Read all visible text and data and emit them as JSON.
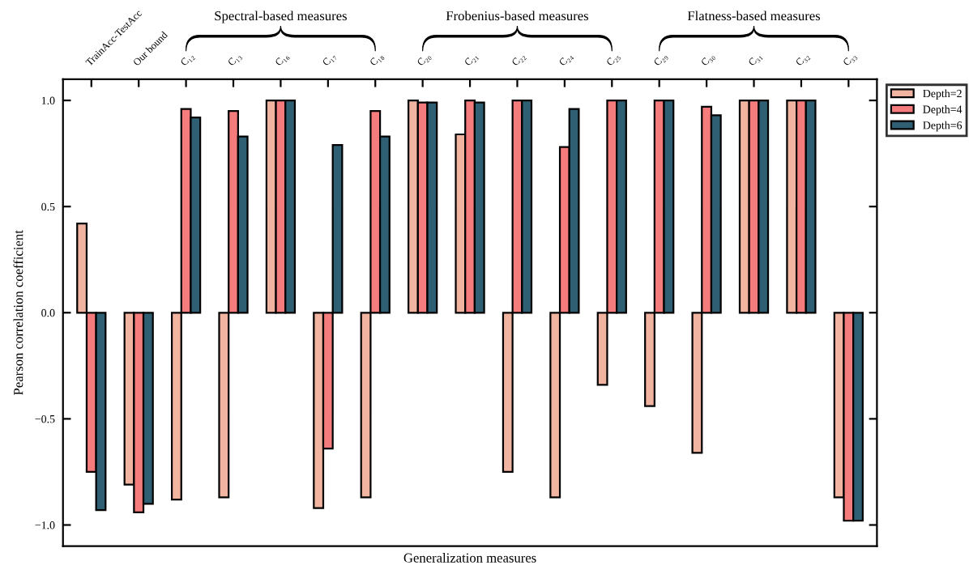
{
  "chart_data": {
    "type": "bar",
    "xlabel": "Generalization measures",
    "ylabel": "Pearson correlation coefficient",
    "categories": [
      "TrainAcc-TestAcc",
      "Our bound",
      "C₁₂",
      "C₁₃",
      "C₁₆",
      "C₁₇",
      "C₁₈",
      "C₂₀",
      "C₂₁",
      "C₂₂",
      "C₂₄",
      "C₂₅",
      "C₂₉",
      "C₃₀",
      "C₃₁",
      "C₃₂",
      "C₃₃"
    ],
    "series": [
      {
        "name": "Depth=2",
        "color": "#f0b4a0",
        "values": [
          0.42,
          -0.81,
          -0.88,
          -0.87,
          1.0,
          -0.92,
          -0.87,
          1.0,
          0.84,
          -0.75,
          -0.87,
          -0.34,
          -0.44,
          -0.66,
          1.0,
          1.0,
          -0.87
        ]
      },
      {
        "name": "Depth=4",
        "color": "#f47c7c",
        "values": [
          -0.75,
          -0.94,
          0.96,
          0.95,
          1.0,
          -0.64,
          0.95,
          0.99,
          1.0,
          1.0,
          0.78,
          1.0,
          1.0,
          0.97,
          1.0,
          1.0,
          -0.98
        ]
      },
      {
        "name": "Depth=6",
        "color": "#2f5f73",
        "values": [
          -0.93,
          -0.9,
          0.92,
          0.83,
          1.0,
          0.79,
          0.83,
          0.99,
          0.99,
          1.0,
          0.96,
          1.0,
          1.0,
          0.93,
          1.0,
          1.0,
          -0.98
        ]
      }
    ],
    "ylim": [
      -1.1,
      1.1
    ],
    "yticks": [
      {
        "value": -1.0,
        "label": "−1.0"
      },
      {
        "value": -0.5,
        "label": "−0.5"
      },
      {
        "value": 0.0,
        "label": "0.0"
      },
      {
        "value": 0.5,
        "label": "0.5"
      },
      {
        "value": 1.0,
        "label": "1.0"
      }
    ],
    "annotations": [
      "Spectral-based measures",
      "Frobenius-based measures",
      "Flatness-based measures"
    ],
    "grid": false,
    "legend": "top right"
  }
}
